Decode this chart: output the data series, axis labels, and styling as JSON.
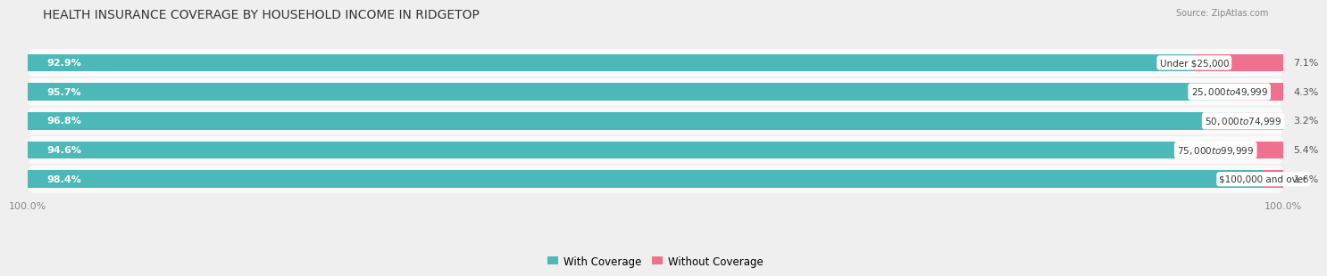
{
  "title": "HEALTH INSURANCE COVERAGE BY HOUSEHOLD INCOME IN RIDGETOP",
  "source": "Source: ZipAtlas.com",
  "categories": [
    "Under $25,000",
    "$25,000 to $49,999",
    "$50,000 to $74,999",
    "$75,000 to $99,999",
    "$100,000 and over"
  ],
  "with_coverage": [
    92.9,
    95.7,
    96.8,
    94.6,
    98.4
  ],
  "without_coverage": [
    7.1,
    4.3,
    3.2,
    5.4,
    1.6
  ],
  "color_with": "#4DB8B8",
  "color_without": "#F07090",
  "bg_color": "#EFEFEF",
  "row_color": "#FAFAFA",
  "title_fontsize": 10,
  "label_fontsize": 8,
  "tick_fontsize": 8,
  "legend_fontsize": 8.5
}
